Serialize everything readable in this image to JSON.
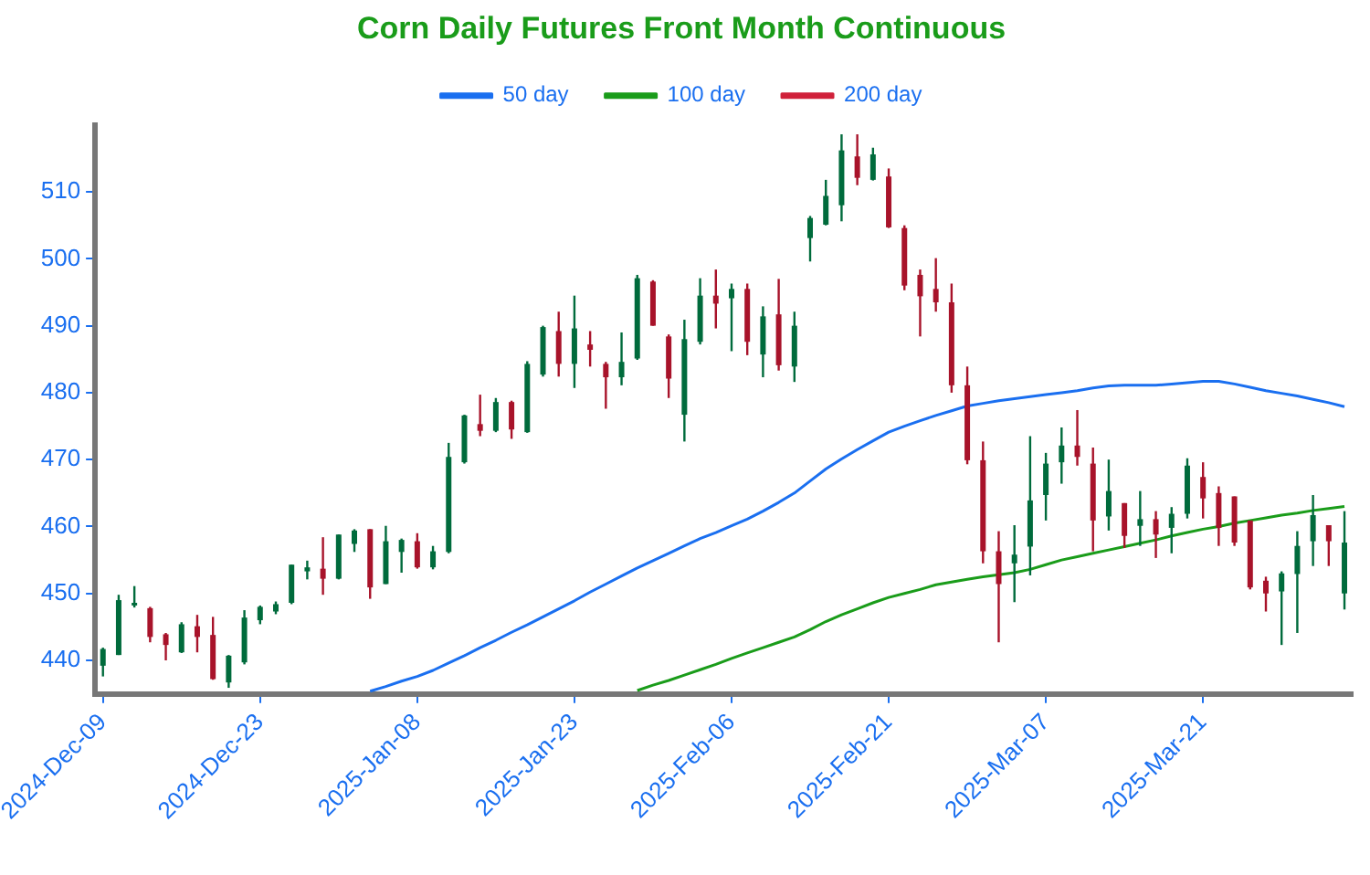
{
  "chart_data": {
    "type": "candlestick",
    "title": "Corn Daily Futures Front Month Continuous",
    "categories": [
      "2024-Dec-09",
      null,
      null,
      null,
      null,
      null,
      null,
      null,
      null,
      null,
      "2024-Dec-23",
      null,
      null,
      null,
      null,
      null,
      null,
      null,
      null,
      null,
      "2025-Jan-08",
      null,
      null,
      null,
      null,
      null,
      null,
      null,
      null,
      null,
      "2025-Jan-23",
      null,
      null,
      null,
      null,
      null,
      null,
      null,
      null,
      null,
      "2025-Feb-06",
      null,
      null,
      null,
      null,
      null,
      null,
      null,
      null,
      null,
      "2025-Feb-21",
      null,
      null,
      null,
      null,
      null,
      null,
      null,
      null,
      null,
      "2025-Mar-07",
      null,
      null,
      null,
      null,
      null,
      null,
      null,
      null,
      null,
      "2025-Mar-21",
      null,
      null,
      null,
      null,
      null,
      null,
      null,
      null,
      null
    ],
    "ohlc": [
      [
        439.2,
        441.9,
        437.6,
        441.7
      ],
      [
        440.8,
        449.8,
        440.8,
        449.0
      ],
      [
        448.6,
        451.1,
        447.9,
        448.2
      ],
      [
        447.8,
        448.0,
        442.7,
        443.5
      ],
      [
        443.9,
        444.1,
        440.0,
        442.3
      ],
      [
        441.2,
        445.7,
        441.1,
        445.4
      ],
      [
        445.1,
        446.8,
        441.2,
        443.5
      ],
      [
        443.8,
        446.5,
        437.1,
        437.2
      ],
      [
        436.7,
        440.8,
        435.9,
        440.7
      ],
      [
        439.7,
        447.5,
        439.4,
        446.4
      ],
      [
        446.0,
        448.2,
        445.4,
        448.0
      ],
      [
        447.3,
        448.8,
        446.9,
        448.4
      ],
      [
        448.6,
        454.3,
        448.4,
        454.3
      ],
      [
        453.3,
        454.9,
        452.1,
        453.9
      ],
      [
        453.7,
        458.4,
        449.8,
        452.2
      ],
      [
        452.2,
        458.8,
        452.1,
        458.8
      ],
      [
        457.4,
        459.6,
        456.2,
        459.4
      ],
      [
        459.6,
        459.6,
        449.2,
        450.9
      ],
      [
        451.4,
        460.1,
        451.4,
        457.8
      ],
      [
        456.2,
        458.2,
        453.1,
        458.0
      ],
      [
        457.8,
        459.0,
        453.7,
        453.9
      ],
      [
        453.9,
        457.1,
        453.6,
        456.3
      ],
      [
        456.2,
        472.5,
        456.0,
        470.4
      ],
      [
        469.6,
        476.7,
        469.4,
        476.6
      ],
      [
        475.3,
        479.7,
        473.5,
        474.3
      ],
      [
        474.3,
        479.2,
        474.1,
        478.6
      ],
      [
        478.6,
        478.8,
        473.1,
        474.5
      ],
      [
        474.1,
        484.7,
        474.0,
        484.3
      ],
      [
        482.7,
        490.0,
        482.4,
        489.8
      ],
      [
        489.2,
        492.1,
        482.4,
        484.3
      ],
      [
        484.3,
        494.5,
        480.7,
        489.6
      ],
      [
        487.2,
        489.2,
        483.9,
        486.4
      ],
      [
        484.3,
        484.6,
        477.6,
        482.3
      ],
      [
        482.3,
        489.0,
        481.1,
        484.6
      ],
      [
        485.1,
        497.6,
        484.9,
        497.1
      ],
      [
        496.6,
        496.8,
        490.0,
        490.0
      ],
      [
        488.4,
        488.7,
        479.2,
        482.1
      ],
      [
        476.7,
        490.9,
        472.7,
        488.0
      ],
      [
        487.6,
        497.1,
        487.2,
        494.5
      ],
      [
        494.5,
        498.4,
        489.6,
        493.3
      ],
      [
        494.1,
        496.3,
        486.2,
        495.5
      ],
      [
        495.5,
        496.3,
        485.6,
        487.6
      ],
      [
        485.7,
        492.9,
        482.3,
        491.4
      ],
      [
        491.7,
        497.0,
        483.3,
        484.1
      ],
      [
        483.9,
        492.1,
        481.6,
        490.0
      ],
      [
        503.1,
        506.4,
        499.6,
        506.1
      ],
      [
        505.1,
        511.8,
        505.0,
        509.4
      ],
      [
        508.0,
        518.6,
        505.6,
        516.2
      ],
      [
        515.3,
        518.6,
        511.0,
        512.1
      ],
      [
        511.8,
        516.6,
        511.7,
        515.6
      ],
      [
        512.3,
        513.5,
        504.6,
        504.7
      ],
      [
        504.6,
        505.0,
        495.3,
        496.0
      ],
      [
        497.6,
        498.4,
        488.4,
        494.4
      ],
      [
        495.5,
        500.1,
        492.1,
        493.5
      ],
      [
        493.5,
        496.3,
        480.0,
        481.1
      ],
      [
        481.1,
        483.9,
        469.3,
        469.9
      ],
      [
        469.9,
        472.7,
        454.5,
        456.3
      ],
      [
        456.3,
        459.3,
        442.7,
        451.4
      ],
      [
        454.5,
        460.2,
        448.7,
        455.8
      ],
      [
        457.0,
        473.5,
        452.7,
        463.9
      ],
      [
        464.7,
        471.0,
        460.9,
        469.4
      ],
      [
        469.6,
        474.8,
        466.4,
        472.1
      ],
      [
        472.1,
        477.4,
        469.1,
        470.4
      ],
      [
        469.4,
        471.8,
        456.3,
        460.9
      ],
      [
        461.5,
        470.0,
        459.4,
        465.3
      ],
      [
        463.5,
        463.5,
        456.8,
        458.6
      ],
      [
        460.1,
        465.3,
        457.1,
        461.1
      ],
      [
        461.1,
        462.3,
        455.3,
        458.8
      ],
      [
        459.8,
        462.9,
        456.0,
        461.9
      ],
      [
        461.9,
        470.2,
        461.2,
        469.1
      ],
      [
        467.4,
        469.6,
        461.2,
        464.2
      ],
      [
        465.0,
        466.0,
        457.1,
        459.8
      ],
      [
        464.5,
        464.5,
        457.1,
        457.6
      ],
      [
        460.9,
        460.9,
        450.6,
        450.9
      ],
      [
        451.9,
        452.5,
        447.3,
        450.0
      ],
      [
        450.3,
        453.3,
        442.3,
        453.0
      ],
      [
        452.9,
        459.3,
        444.1,
        457.1
      ],
      [
        457.8,
        464.7,
        454.1,
        461.7
      ],
      [
        460.2,
        460.2,
        454.1,
        457.8
      ],
      [
        450.0,
        462.3,
        447.6,
        457.6
      ]
    ],
    "colors": [
      "#006b3c",
      "#006b3c",
      "#006b3c",
      "#a8132a",
      "#a8132a",
      "#006b3c",
      "#a8132a",
      "#a8132a",
      "#006b3c",
      "#006b3c",
      "#006b3c",
      "#006b3c",
      "#006b3c",
      "#006b3c",
      "#a8132a",
      "#006b3c",
      "#006b3c",
      "#a8132a",
      "#006b3c",
      "#006b3c",
      "#a8132a",
      "#006b3c",
      "#006b3c",
      "#006b3c",
      "#a8132a",
      "#006b3c",
      "#a8132a",
      "#006b3c",
      "#006b3c",
      "#a8132a",
      "#006b3c",
      "#a8132a",
      "#a8132a",
      "#006b3c",
      "#006b3c",
      "#a8132a",
      "#a8132a",
      "#006b3c",
      "#006b3c",
      "#a8132a",
      "#006b3c",
      "#a8132a",
      "#006b3c",
      "#a8132a",
      "#006b3c",
      "#006b3c",
      "#006b3c",
      "#006b3c",
      "#a8132a",
      "#006b3c",
      "#a8132a",
      "#a8132a",
      "#a8132a",
      "#a8132a",
      "#a8132a",
      "#a8132a",
      "#a8132a",
      "#a8132a",
      "#006b3c",
      "#006b3c",
      "#006b3c",
      "#006b3c",
      "#a8132a",
      "#a8132a",
      "#006b3c",
      "#a8132a",
      "#006b3c",
      "#a8132a",
      "#006b3c",
      "#006b3c",
      "#a8132a",
      "#a8132a",
      "#a8132a",
      "#a8132a",
      "#a8132a",
      "#006b3c",
      "#006b3c",
      "#006b3c",
      "#a8132a",
      "#006b3c"
    ],
    "series": [
      {
        "name": "50 day",
        "type": "line",
        "color": "#1a6ff0",
        "values": [
          null,
          null,
          null,
          null,
          null,
          null,
          null,
          null,
          null,
          null,
          null,
          null,
          null,
          null,
          null,
          null,
          null,
          435.4,
          436.1,
          436.9,
          437.6,
          438.5,
          439.6,
          440.7,
          441.9,
          443.0,
          444.2,
          445.3,
          446.5,
          447.7,
          448.9,
          450.2,
          451.4,
          452.6,
          453.8,
          454.9,
          456.0,
          457.1,
          458.2,
          459.1,
          460.1,
          461.1,
          462.3,
          463.6,
          465.0,
          466.8,
          468.6,
          470.1,
          471.5,
          472.8,
          474.1,
          475.0,
          475.8,
          476.6,
          477.3,
          478.0,
          478.4,
          478.8,
          479.1,
          479.4,
          479.7,
          480.0,
          480.3,
          480.7,
          481.0,
          481.1,
          481.1,
          481.1,
          481.3,
          481.5,
          481.7,
          481.7,
          481.3,
          480.8,
          480.3,
          479.9,
          479.5,
          479.0,
          478.5,
          477.9
        ]
      },
      {
        "name": "100 day",
        "type": "line",
        "color": "#1a9c1a",
        "values": [
          null,
          null,
          null,
          null,
          null,
          null,
          null,
          null,
          null,
          null,
          null,
          null,
          null,
          null,
          null,
          null,
          null,
          null,
          null,
          null,
          null,
          null,
          null,
          null,
          null,
          null,
          null,
          null,
          null,
          null,
          null,
          null,
          null,
          null,
          435.5,
          436.3,
          437.0,
          437.8,
          438.6,
          439.4,
          440.3,
          441.1,
          441.9,
          442.7,
          443.5,
          444.6,
          445.8,
          446.8,
          447.7,
          448.6,
          449.4,
          450.0,
          450.6,
          451.3,
          451.7,
          452.1,
          452.5,
          452.8,
          453.1,
          453.6,
          454.3,
          455.0,
          455.5,
          456.0,
          456.5,
          457.0,
          457.5,
          458.0,
          458.6,
          459.1,
          459.6,
          460.0,
          460.5,
          460.9,
          461.3,
          461.7,
          462.0,
          462.4,
          462.7,
          463.0
        ]
      },
      {
        "name": "200 day",
        "type": "line",
        "color": "#d0213a",
        "values": [
          null,
          null,
          null,
          null,
          null,
          null,
          null,
          null,
          null,
          null,
          null,
          null,
          null,
          null,
          null,
          null,
          null,
          null,
          null,
          null,
          null,
          null,
          null,
          null,
          null,
          null,
          null,
          null,
          null,
          null,
          null,
          null,
          null,
          null,
          null,
          null,
          null,
          null,
          null,
          null,
          null,
          null,
          null,
          null,
          null,
          null,
          null,
          null,
          null,
          null,
          null,
          null,
          null,
          null,
          null,
          null,
          null,
          null,
          null,
          null,
          null,
          null,
          null,
          null,
          null,
          null,
          null,
          null,
          null,
          null,
          null,
          null,
          null,
          null,
          null,
          null,
          null,
          null,
          null,
          null
        ]
      }
    ],
    "ylim": [
      435,
      520
    ],
    "yticks": [
      440,
      450,
      460,
      470,
      480,
      490,
      500,
      510
    ],
    "grid": false,
    "legend": "top"
  }
}
